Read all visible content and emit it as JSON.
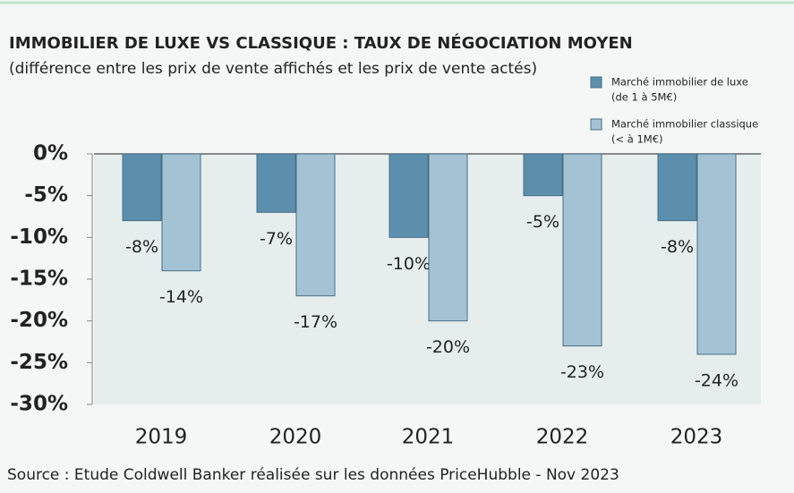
{
  "chart_data": {
    "type": "bar",
    "title": "IMMOBILIER DE LUXE VS CLASSIQUE : TAUX DE NÉGOCIATION MOYEN",
    "subtitle": "(différence entre les prix de vente affichés et les prix de vente actés)",
    "source": "Source : Etude Coldwell Banker réalisée sur les données PriceHubble - Nov 2023",
    "categories": [
      "2019",
      "2020",
      "2021",
      "2022",
      "2023"
    ],
    "series": [
      {
        "name": "Marché immobilier de luxe",
        "name_detail": "(de 1 à 5M€)",
        "color": "#5b8fad",
        "values": [
          -8,
          -7,
          -10,
          -5,
          -8
        ],
        "value_labels": [
          "-8%",
          "-7%",
          "-10%",
          "-5%",
          "-8%"
        ]
      },
      {
        "name": "Marché immobilier classique",
        "name_detail": "(< à 1M€)",
        "color": "#a3c3d4",
        "values": [
          -14,
          -17,
          -20,
          -23,
          -24
        ],
        "value_labels": [
          "-14%",
          "-17%",
          "-20%",
          "-23%",
          "-24%"
        ]
      }
    ],
    "ylim": [
      -30,
      0
    ],
    "yticks": [
      {
        "value": 0,
        "label": "0%"
      },
      {
        "value": -5,
        "label": "-5%"
      },
      {
        "value": -10,
        "label": "-10%"
      },
      {
        "value": -15,
        "label": "-15%"
      },
      {
        "value": -20,
        "label": "-20%"
      },
      {
        "value": -25,
        "label": "-25%"
      },
      {
        "value": -30,
        "label": "-30%"
      }
    ],
    "legend": "top-right"
  }
}
